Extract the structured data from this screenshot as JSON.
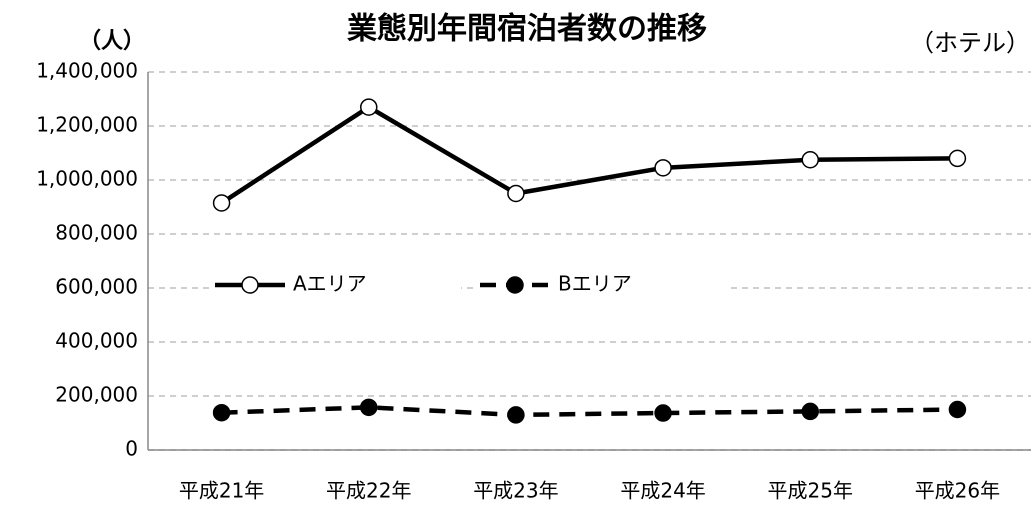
{
  "chart_data": {
    "type": "line",
    "title": "業態別年間宿泊者数の推移",
    "y_label": "（人）",
    "annotation": "（ホテル）",
    "categories": [
      "平成21年",
      "平成22年",
      "平成23年",
      "平成24年",
      "平成25年",
      "平成26年"
    ],
    "series": [
      {
        "name": "Aエリア",
        "color": "#000000",
        "values": [
          915000,
          1270000,
          950000,
          1045000,
          1075000,
          1080000
        ]
      },
      {
        "name": "Bエリア",
        "color": "#000000",
        "values": [
          138000,
          158000,
          130000,
          137000,
          143000,
          150000
        ]
      }
    ],
    "ylim": [
      0,
      1400000
    ],
    "yticks": [
      0,
      {
        "value": 200000,
        "label": "200,000"
      },
      {
        "value": 400000,
        "label": "400,000"
      },
      {
        "value": 600000,
        "label": "600,000"
      },
      {
        "value": 800000,
        "label": "800,000"
      },
      {
        "value": 1000000,
        "label": "1,000,000"
      },
      {
        "value": 1200000,
        "label": "1,200,000"
      },
      {
        "value": 1400000,
        "label": "1,400,000"
      }
    ],
    "grid": true,
    "legend": "inside-left"
  }
}
